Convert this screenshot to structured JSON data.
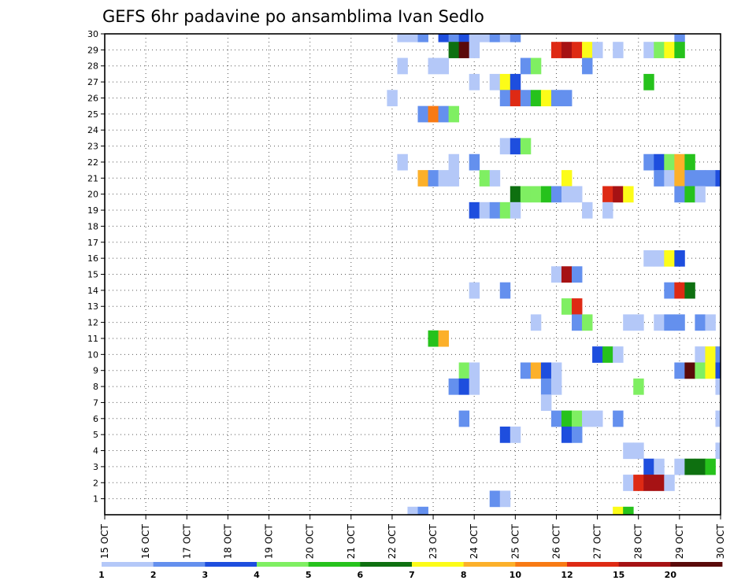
{
  "chart_data": {
    "type": "heatmap",
    "title": "GEFS 6hr padavine po ansamblima Ivan Sedlo",
    "xlabel": "",
    "ylabel": "",
    "x_tick_labels": [
      "15 OCT",
      "16 OCT",
      "17 OCT",
      "18 OCT",
      "19 OCT",
      "20 OCT",
      "21 OCT",
      "22 OCT",
      "23 OCT",
      "24 OCT",
      "25 OCT",
      "26 OCT",
      "27 OCT",
      "28 OCT",
      "29 OCT",
      "30 OCT"
    ],
    "x_range_days": [
      15,
      30
    ],
    "y_tick_labels": [
      "1",
      "2",
      "3",
      "4",
      "5",
      "6",
      "7",
      "8",
      "9",
      "10",
      "11",
      "12",
      "13",
      "14",
      "15",
      "16",
      "17",
      "18",
      "19",
      "20",
      "21",
      "22",
      "23",
      "24",
      "25",
      "26",
      "27",
      "28",
      "29",
      "30"
    ],
    "y_range": [
      0,
      30
    ],
    "grid": true,
    "colorbar": {
      "placement": "bottom",
      "boundaries": [
        1,
        2,
        3,
        4,
        5,
        6,
        7,
        8,
        10,
        12,
        15,
        20
      ],
      "labels": [
        "1",
        "2",
        "3",
        "4",
        "5",
        "6",
        "7",
        "8",
        "10",
        "12",
        "15",
        "20"
      ],
      "colors": [
        "#b4c8f8",
        "#6490ee",
        "#1e4ede",
        "#7fef62",
        "#26c21c",
        "#0e7010",
        "#fcfc18",
        "#fcb02a",
        "#f87a14",
        "#de2a14",
        "#a61214",
        "#5a0a0a"
      ]
    },
    "cells": [
      [
        22.25,
        30,
        1
      ],
      [
        22.5,
        30,
        1
      ],
      [
        22.75,
        30,
        2
      ],
      [
        23.25,
        30,
        3
      ],
      [
        23.5,
        30,
        2
      ],
      [
        23.75,
        30,
        3
      ],
      [
        24.0,
        30,
        1
      ],
      [
        24.25,
        30,
        1
      ],
      [
        24.5,
        30,
        2
      ],
      [
        24.75,
        30,
        1
      ],
      [
        25.0,
        30,
        2
      ],
      [
        29.0,
        30,
        2
      ],
      [
        23.5,
        29,
        6
      ],
      [
        23.75,
        29,
        12
      ],
      [
        24.0,
        29,
        1
      ],
      [
        26.0,
        29,
        10
      ],
      [
        26.25,
        29,
        11
      ],
      [
        26.5,
        29,
        10
      ],
      [
        26.75,
        29,
        7
      ],
      [
        27.0,
        29,
        1
      ],
      [
        27.5,
        29,
        1
      ],
      [
        28.25,
        29,
        1
      ],
      [
        28.5,
        29,
        4
      ],
      [
        28.75,
        29,
        7
      ],
      [
        29.0,
        29,
        5
      ],
      [
        22.25,
        28,
        1
      ],
      [
        23.0,
        28,
        1
      ],
      [
        23.25,
        28,
        1
      ],
      [
        25.25,
        28,
        2
      ],
      [
        25.5,
        28,
        4
      ],
      [
        26.75,
        28,
        2
      ],
      [
        24.0,
        27,
        1
      ],
      [
        24.5,
        27,
        1
      ],
      [
        24.75,
        27,
        7
      ],
      [
        25.0,
        27,
        3
      ],
      [
        28.25,
        27,
        5
      ],
      [
        22.0,
        26,
        1
      ],
      [
        24.75,
        26,
        2
      ],
      [
        25.0,
        26,
        10
      ],
      [
        25.25,
        26,
        2
      ],
      [
        25.5,
        26,
        5
      ],
      [
        25.75,
        26,
        7
      ],
      [
        26.0,
        26,
        2
      ],
      [
        26.25,
        26,
        2
      ],
      [
        22.75,
        25,
        2
      ],
      [
        23.0,
        25,
        9
      ],
      [
        23.25,
        25,
        2
      ],
      [
        23.5,
        25,
        4
      ],
      [
        24.75,
        23,
        1
      ],
      [
        25.0,
        23,
        3
      ],
      [
        25.25,
        23,
        4
      ],
      [
        22.25,
        22,
        1
      ],
      [
        23.5,
        22,
        1
      ],
      [
        24.0,
        22,
        2
      ],
      [
        28.25,
        22,
        2
      ],
      [
        28.5,
        22,
        3
      ],
      [
        28.75,
        22,
        4
      ],
      [
        29.0,
        22,
        8
      ],
      [
        29.25,
        22,
        5
      ],
      [
        22.75,
        21,
        8
      ],
      [
        23.0,
        21,
        2
      ],
      [
        23.25,
        21,
        1
      ],
      [
        23.5,
        21,
        1
      ],
      [
        24.25,
        21,
        4
      ],
      [
        24.5,
        21,
        1
      ],
      [
        26.25,
        21,
        7
      ],
      [
        28.5,
        21,
        2
      ],
      [
        28.75,
        21,
        1
      ],
      [
        29.0,
        21,
        8
      ],
      [
        29.25,
        21,
        2
      ],
      [
        29.5,
        21,
        2
      ],
      [
        29.75,
        21,
        2
      ],
      [
        30.0,
        21,
        3
      ],
      [
        25.0,
        20,
        6
      ],
      [
        25.25,
        20,
        4
      ],
      [
        25.5,
        20,
        4
      ],
      [
        25.75,
        20,
        5
      ],
      [
        26.0,
        20,
        2
      ],
      [
        26.25,
        20,
        1
      ],
      [
        26.5,
        20,
        1
      ],
      [
        27.25,
        20,
        10
      ],
      [
        27.5,
        20,
        11
      ],
      [
        27.75,
        20,
        7
      ],
      [
        29.0,
        20,
        2
      ],
      [
        29.25,
        20,
        5
      ],
      [
        29.5,
        20,
        1
      ],
      [
        24.0,
        19,
        3
      ],
      [
        24.25,
        19,
        1
      ],
      [
        24.5,
        19,
        2
      ],
      [
        24.75,
        19,
        4
      ],
      [
        25.0,
        19,
        1
      ],
      [
        26.75,
        19,
        1
      ],
      [
        27.25,
        19,
        1
      ],
      [
        28.25,
        16,
        1
      ],
      [
        28.5,
        16,
        1
      ],
      [
        28.75,
        16,
        7
      ],
      [
        29.0,
        16,
        3
      ],
      [
        26.0,
        15,
        1
      ],
      [
        26.25,
        15,
        11
      ],
      [
        26.5,
        15,
        2
      ],
      [
        24.0,
        14,
        1
      ],
      [
        24.75,
        14,
        2
      ],
      [
        28.75,
        14,
        2
      ],
      [
        29.0,
        14,
        10
      ],
      [
        29.25,
        14,
        6
      ],
      [
        26.25,
        13,
        4
      ],
      [
        26.5,
        13,
        10
      ],
      [
        25.5,
        12,
        1
      ],
      [
        26.5,
        12,
        2
      ],
      [
        26.75,
        12,
        4
      ],
      [
        27.75,
        12,
        1
      ],
      [
        28.0,
        12,
        1
      ],
      [
        28.5,
        12,
        1
      ],
      [
        28.75,
        12,
        2
      ],
      [
        29.0,
        12,
        2
      ],
      [
        29.5,
        12,
        2
      ],
      [
        29.75,
        12,
        1
      ],
      [
        23.0,
        11,
        5
      ],
      [
        23.25,
        11,
        8
      ],
      [
        27.0,
        10,
        3
      ],
      [
        27.25,
        10,
        5
      ],
      [
        27.5,
        10,
        1
      ],
      [
        29.5,
        10,
        1
      ],
      [
        29.75,
        10,
        7
      ],
      [
        30.0,
        10,
        2
      ],
      [
        23.75,
        9,
        4
      ],
      [
        24.0,
        9,
        1
      ],
      [
        25.25,
        9,
        2
      ],
      [
        25.5,
        9,
        8
      ],
      [
        25.75,
        9,
        3
      ],
      [
        26.0,
        9,
        1
      ],
      [
        29.0,
        9,
        2
      ],
      [
        29.25,
        9,
        12
      ],
      [
        29.5,
        9,
        4
      ],
      [
        29.75,
        9,
        7
      ],
      [
        30.0,
        9,
        3
      ],
      [
        23.5,
        8,
        2
      ],
      [
        23.75,
        8,
        3
      ],
      [
        24.0,
        8,
        1
      ],
      [
        25.75,
        8,
        2
      ],
      [
        26.0,
        8,
        1
      ],
      [
        28.0,
        8,
        4
      ],
      [
        30.0,
        8,
        1
      ],
      [
        25.75,
        7,
        1
      ],
      [
        23.75,
        6,
        2
      ],
      [
        26.0,
        6,
        2
      ],
      [
        26.25,
        6,
        5
      ],
      [
        26.5,
        6,
        4
      ],
      [
        26.75,
        6,
        1
      ],
      [
        27.0,
        6,
        1
      ],
      [
        27.5,
        6,
        2
      ],
      [
        30.0,
        6,
        1
      ],
      [
        24.75,
        5,
        3
      ],
      [
        25.0,
        5,
        1
      ],
      [
        26.25,
        5,
        3
      ],
      [
        26.5,
        5,
        2
      ],
      [
        27.75,
        4,
        1
      ],
      [
        28.0,
        4,
        1
      ],
      [
        30.0,
        4,
        1
      ],
      [
        28.25,
        3,
        3
      ],
      [
        28.5,
        3,
        1
      ],
      [
        29.0,
        3,
        1
      ],
      [
        29.25,
        3,
        6
      ],
      [
        29.5,
        3,
        6
      ],
      [
        29.75,
        3,
        5
      ],
      [
        27.75,
        2,
        1
      ],
      [
        28.0,
        2,
        10
      ],
      [
        28.25,
        2,
        11
      ],
      [
        28.5,
        2,
        11
      ],
      [
        28.75,
        2,
        1
      ],
      [
        24.5,
        1,
        2
      ],
      [
        24.75,
        1,
        1
      ],
      [
        22.5,
        0,
        1
      ],
      [
        22.75,
        0,
        2
      ],
      [
        27.5,
        0,
        7
      ],
      [
        27.75,
        0,
        5
      ]
    ]
  }
}
